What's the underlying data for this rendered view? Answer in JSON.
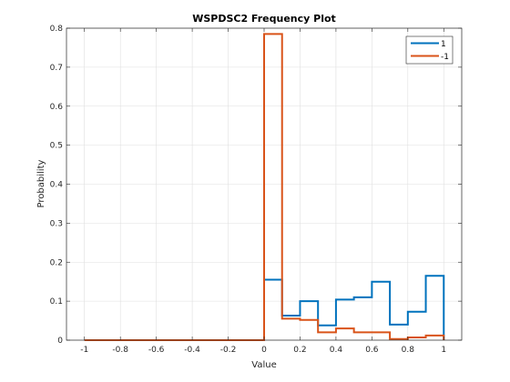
{
  "colors": {
    "series1": "#0072BD",
    "series2": "#D95319",
    "grid": "#dfdfdf",
    "axis": "#262626"
  },
  "chart_data": {
    "type": "histogram",
    "title": "WSPDSC2 Frequency Plot",
    "xlabel": "Value",
    "ylabel": "Probability",
    "xlim": [
      -1.1,
      1.1
    ],
    "ylim": [
      0,
      0.8
    ],
    "grid": true,
    "legend_position": "top-right",
    "xticks": [
      -1,
      -0.8,
      -0.6,
      -0.4,
      -0.2,
      0,
      0.2,
      0.4,
      0.6,
      0.8,
      1
    ],
    "xtick_labels": [
      "-1",
      "-0.8",
      "-0.6",
      "-0.4",
      "-0.2",
      "0",
      "0.2",
      "0.4",
      "0.6",
      "0.8",
      "1"
    ],
    "yticks": [
      0,
      0.1,
      0.2,
      0.3,
      0.4,
      0.5,
      0.6,
      0.7,
      0.8
    ],
    "ytick_labels": [
      "0",
      "0.1",
      "0.2",
      "0.3",
      "0.4",
      "0.5",
      "0.6",
      "0.7",
      "0.8"
    ],
    "bin_edges": [
      -1,
      -0.9,
      -0.8,
      -0.7,
      -0.6,
      -0.5,
      -0.4,
      -0.3,
      -0.2,
      -0.1,
      0,
      0.1,
      0.2,
      0.3,
      0.4,
      0.5,
      0.6,
      0.7,
      0.8,
      0.9,
      1
    ],
    "series": [
      {
        "name": "1",
        "color": "#0072BD",
        "values": [
          0,
          0,
          0,
          0,
          0,
          0,
          0,
          0,
          0,
          0,
          0.155,
          0.063,
          0.1,
          0.038,
          0.104,
          0.11,
          0.15,
          0.04,
          0.073,
          0.165
        ]
      },
      {
        "name": "-1",
        "color": "#D95319",
        "values": [
          0,
          0,
          0,
          0,
          0,
          0,
          0,
          0,
          0,
          0,
          0.785,
          0.055,
          0.052,
          0.02,
          0.03,
          0.02,
          0.02,
          0.003,
          0.007,
          0.012
        ]
      }
    ]
  }
}
